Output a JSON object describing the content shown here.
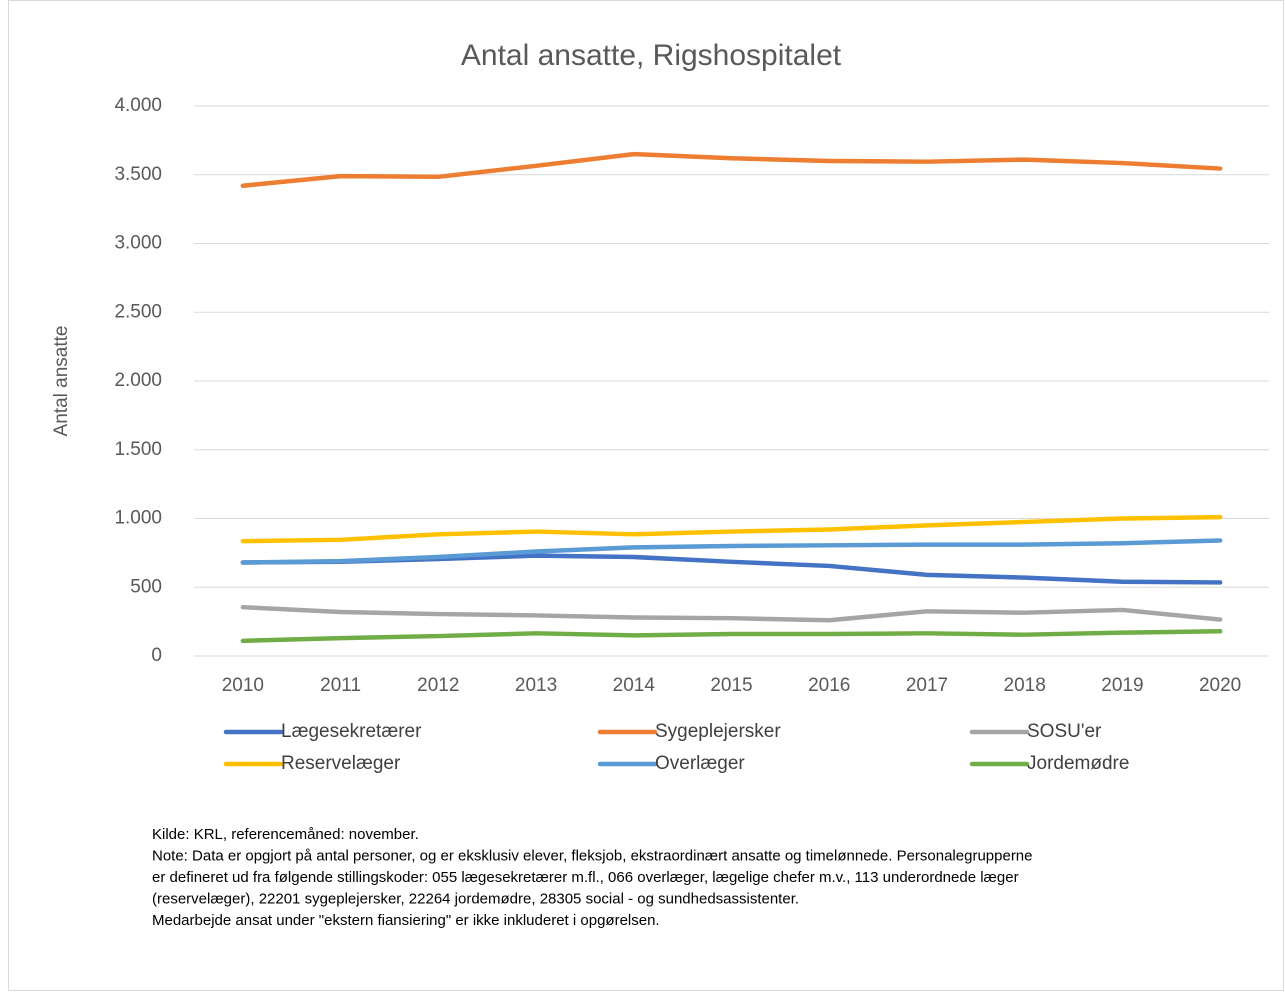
{
  "chart_data": {
    "type": "line",
    "title": "Antal ansatte, Rigshospitalet",
    "y_label": "Antal ansatte",
    "categories": [
      "2010",
      "2011",
      "2012",
      "2013",
      "2014",
      "2015",
      "2016",
      "2017",
      "2018",
      "2019",
      "2020"
    ],
    "series": [
      {
        "name": "Lægesekretærer",
        "color": "#4472c4",
        "values": [
          680,
          685,
          705,
          730,
          720,
          685,
          655,
          590,
          570,
          540,
          535
        ]
      },
      {
        "name": "Sygeplejersker",
        "color": "#ed7d31",
        "values": [
          3420,
          3490,
          3485,
          3565,
          3650,
          3620,
          3600,
          3595,
          3610,
          3585,
          3545
        ]
      },
      {
        "name": "SOSU'er",
        "color": "#a5a5a5",
        "values": [
          355,
          320,
          305,
          295,
          280,
          275,
          260,
          325,
          315,
          335,
          265
        ]
      },
      {
        "name": "Reservelæger",
        "color": "#ffc000",
        "values": [
          835,
          845,
          885,
          905,
          885,
          905,
          920,
          950,
          975,
          1000,
          1010
        ]
      },
      {
        "name": "Overlæger",
        "color": "#5b9bd5",
        "values": [
          680,
          690,
          720,
          760,
          790,
          800,
          805,
          810,
          810,
          820,
          840
        ]
      },
      {
        "name": "Jordemødre",
        "color": "#70ad47",
        "values": [
          110,
          130,
          145,
          165,
          150,
          160,
          160,
          165,
          155,
          170,
          180
        ]
      }
    ],
    "ylim": [
      0,
      4000
    ],
    "yticks": [
      0,
      500,
      {
        "value": 1000,
        "label": "1.000"
      },
      {
        "value": 1500,
        "label": "1.500"
      },
      {
        "value": 2000,
        "label": "2.000"
      },
      {
        "value": 2500,
        "label": "2.500"
      },
      {
        "value": 3000,
        "label": "3.000"
      },
      {
        "value": 3500,
        "label": "3.500"
      },
      {
        "value": 4000,
        "label": "4.000"
      }
    ],
    "grid": true,
    "legend": "bottom",
    "notes": [
      "Kilde: KRL, referencemåned: november.",
      "Note: Data er opgjort på antal personer, og er eksklusiv elever, fleksjob, ekstraordinært ansatte og timelønnede. Personalegrupperne",
      "er defineret ud fra følgende stillingskoder: 055 lægesekretærer m.fl., 066 overlæger, lægelige chefer m.v., 113 underordnede læger",
      "(reservelæger), 22201 sygeplejersker, 22264 jordemødre, 28305 social - og sundhedsassistenter.",
      "Medarbejde ansat under \"ekstern fiansiering\" er ikke inkluderet i opgørelsen."
    ]
  }
}
